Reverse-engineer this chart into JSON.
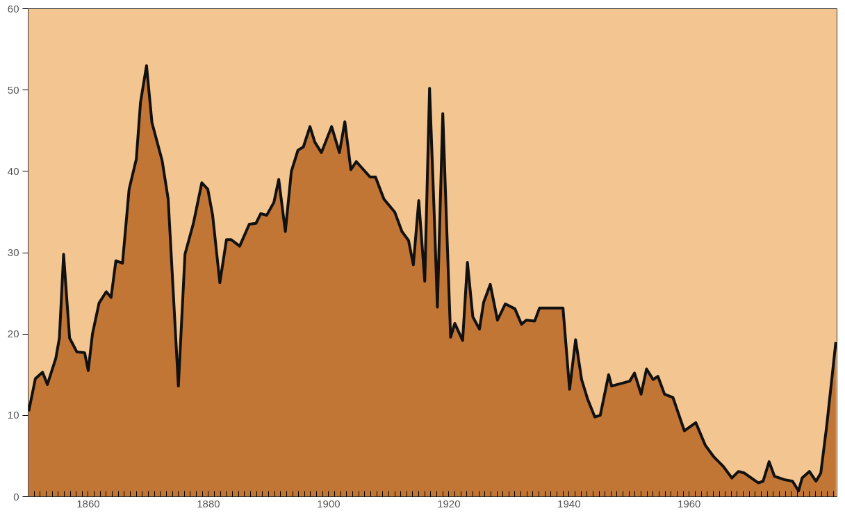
{
  "chart_data": {
    "type": "area",
    "x": [
      1850.1,
      1851.2,
      1852.4,
      1853.2,
      1854.6,
      1855.2,
      1855.9,
      1856.9,
      1858.1,
      1859.4,
      1860.0,
      1860.7,
      1861.8,
      1863.0,
      1863.8,
      1864.6,
      1865.7,
      1866.8,
      1868.0,
      1868.7,
      1869.7,
      1870.6,
      1872.3,
      1873.3,
      1875.0,
      1876.1,
      1877.5,
      1878.9,
      1879.9,
      1880.7,
      1881.9,
      1883.0,
      1883.8,
      1885.2,
      1886.8,
      1887.9,
      1888.7,
      1889.7,
      1890.9,
      1891.7,
      1892.8,
      1893.8,
      1894.9,
      1895.8,
      1896.9,
      1897.7,
      1898.8,
      1900.5,
      1901.8,
      1902.7,
      1903.7,
      1904.6,
      1906.9,
      1907.8,
      1909.2,
      1911.0,
      1912.2,
      1913.3,
      1914.1,
      1915.0,
      1916.0,
      1916.8,
      1917.6,
      1918.1,
      1919.0,
      1919.6,
      1920.3,
      1921.0,
      1922.3,
      1923.1,
      1924.0,
      1925.1,
      1925.8,
      1926.9,
      1928.1,
      1929.4,
      1931.0,
      1932.1,
      1932.9,
      1934.3,
      1935.1,
      1939.0,
      1940.1,
      1941.1,
      1942.1,
      1943.1,
      1944.3,
      1945.2,
      1946.6,
      1947.1,
      1950.1,
      1950.9,
      1952.0,
      1952.9,
      1954.0,
      1954.8,
      1955.9,
      1957.3,
      1959.2,
      1961.1,
      1962.7,
      1964.1,
      1965.7,
      1967.1,
      1968.2,
      1969.2,
      1971.5,
      1972.3,
      1973.3,
      1974.2,
      1975.8,
      1977.2,
      1978.2,
      1978.8,
      1980.0,
      1981.1,
      1981.9,
      1982.9,
      1984.4
    ],
    "series": [
      {
        "color": "#c27636",
        "values": [
          10.5,
          14.5,
          15.3,
          13.8,
          17,
          19.5,
          29.8,
          19.5,
          17.8,
          17.7,
          15.5,
          20,
          23.8,
          25.2,
          24.5,
          29,
          28.7,
          37.8,
          41.5,
          48.5,
          53,
          46,
          41.3,
          36.6,
          13.6,
          29.8,
          33.6,
          38.6,
          37.8,
          34.6,
          26.3,
          31.6,
          31.6,
          30.8,
          33.5,
          33.6,
          34.8,
          34.6,
          36.2,
          39,
          32.6,
          40,
          42.6,
          43,
          45.5,
          43.6,
          42.3,
          45.5,
          42.3,
          46.1,
          40.2,
          41.2,
          39.3,
          39.3,
          36.6,
          35,
          32.6,
          31.5,
          28.5,
          36.4,
          26.5,
          50.2,
          34.2,
          23.3,
          47.1,
          34.2,
          19.6,
          21.3,
          19.2,
          28.8,
          22.1,
          20.6,
          23.9,
          26.1,
          21.7,
          23.7,
          23.1,
          21.2,
          21.7,
          21.6,
          23.2,
          23.2,
          13.2,
          19.3,
          14.4,
          12,
          9.8,
          10,
          15,
          13.6,
          14.2,
          15.2,
          12.6,
          15.7,
          14.4,
          14.8,
          12.6,
          12.2,
          8.1,
          9.1,
          6.3,
          4.9,
          3.7,
          2.3,
          3.1,
          2.9,
          1.7,
          1.9,
          4.3,
          2.5,
          2.1,
          1.9,
          0.7,
          2.3,
          3.1,
          1.9,
          2.9,
          8.8,
          19
        ]
      }
    ],
    "xlim": [
      1850,
      1984.6
    ],
    "ylim": [
      0,
      60
    ],
    "yticks": [
      0,
      10,
      20,
      30,
      40,
      50,
      60
    ],
    "xticks": [
      {
        "value": 1851,
        "label": null
      },
      {
        "value": 1852,
        "label": null
      },
      {
        "value": 1853,
        "label": null
      },
      {
        "value": 1854,
        "label": null
      },
      {
        "value": 1855,
        "label": null
      },
      {
        "value": 1856,
        "label": null
      },
      {
        "value": 1857,
        "label": null
      },
      {
        "value": 1858,
        "label": null
      },
      {
        "value": 1859,
        "label": null
      },
      1860,
      {
        "value": 1861,
        "label": null
      },
      {
        "value": 1862,
        "label": null
      },
      {
        "value": 1863,
        "label": null
      },
      {
        "value": 1864,
        "label": null
      },
      {
        "value": 1865,
        "label": null
      },
      {
        "value": 1866,
        "label": null
      },
      {
        "value": 1867,
        "label": null
      },
      {
        "value": 1868,
        "label": null
      },
      {
        "value": 1869,
        "label": null
      },
      {
        "value": 1870,
        "label": null
      },
      {
        "value": 1871,
        "label": null
      },
      {
        "value": 1872,
        "label": null
      },
      {
        "value": 1873,
        "label": null
      },
      {
        "value": 1874,
        "label": null
      },
      {
        "value": 1875,
        "label": null
      },
      {
        "value": 1876,
        "label": null
      },
      {
        "value": 1877,
        "label": null
      },
      {
        "value": 1878,
        "label": null
      },
      {
        "value": 1879,
        "label": null
      },
      1880,
      {
        "value": 1881,
        "label": null
      },
      {
        "value": 1882,
        "label": null
      },
      {
        "value": 1883,
        "label": null
      },
      {
        "value": 1884,
        "label": null
      },
      {
        "value": 1885,
        "label": null
      },
      {
        "value": 1886,
        "label": null
      },
      {
        "value": 1887,
        "label": null
      },
      {
        "value": 1888,
        "label": null
      },
      {
        "value": 1889,
        "label": null
      },
      {
        "value": 1890,
        "label": null
      },
      {
        "value": 1891,
        "label": null
      },
      {
        "value": 1892,
        "label": null
      },
      {
        "value": 1893,
        "label": null
      },
      {
        "value": 1894,
        "label": null
      },
      {
        "value": 1895,
        "label": null
      },
      {
        "value": 1896,
        "label": null
      },
      {
        "value": 1897,
        "label": null
      },
      {
        "value": 1898,
        "label": null
      },
      {
        "value": 1899,
        "label": null
      },
      1900,
      {
        "value": 1901,
        "label": null
      },
      {
        "value": 1902,
        "label": null
      },
      {
        "value": 1903,
        "label": null
      },
      {
        "value": 1904,
        "label": null
      },
      {
        "value": 1905,
        "label": null
      },
      {
        "value": 1906,
        "label": null
      },
      {
        "value": 1907,
        "label": null
      },
      {
        "value": 1908,
        "label": null
      },
      {
        "value": 1909,
        "label": null
      },
      {
        "value": 1910,
        "label": null
      },
      {
        "value": 1911,
        "label": null
      },
      {
        "value": 1912,
        "label": null
      },
      {
        "value": 1913,
        "label": null
      },
      {
        "value": 1914,
        "label": null
      },
      {
        "value": 1915,
        "label": null
      },
      {
        "value": 1916,
        "label": null
      },
      {
        "value": 1917,
        "label": null
      },
      {
        "value": 1918,
        "label": null
      },
      {
        "value": 1919,
        "label": null
      },
      1920,
      {
        "value": 1921,
        "label": null
      },
      {
        "value": 1922,
        "label": null
      },
      {
        "value": 1923,
        "label": null
      },
      {
        "value": 1924,
        "label": null
      },
      {
        "value": 1925,
        "label": null
      },
      {
        "value": 1926,
        "label": null
      },
      {
        "value": 1927,
        "label": null
      },
      {
        "value": 1928,
        "label": null
      },
      {
        "value": 1929,
        "label": null
      },
      {
        "value": 1930,
        "label": null
      },
      {
        "value": 1931,
        "label": null
      },
      {
        "value": 1932,
        "label": null
      },
      {
        "value": 1933,
        "label": null
      },
      {
        "value": 1934,
        "label": null
      },
      {
        "value": 1935,
        "label": null
      },
      {
        "value": 1936,
        "label": null
      },
      {
        "value": 1937,
        "label": null
      },
      {
        "value": 1938,
        "label": null
      },
      {
        "value": 1939,
        "label": null
      },
      1940,
      {
        "value": 1941,
        "label": null
      },
      {
        "value": 1942,
        "label": null
      },
      {
        "value": 1943,
        "label": null
      },
      {
        "value": 1944,
        "label": null
      },
      {
        "value": 1945,
        "label": null
      },
      {
        "value": 1946,
        "label": null
      },
      {
        "value": 1947,
        "label": null
      },
      {
        "value": 1948,
        "label": null
      },
      {
        "value": 1949,
        "label": null
      },
      {
        "value": 1950,
        "label": null
      },
      {
        "value": 1951,
        "label": null
      },
      {
        "value": 1952,
        "label": null
      },
      {
        "value": 1953,
        "label": null
      },
      {
        "value": 1954,
        "label": null
      },
      {
        "value": 1955,
        "label": null
      },
      {
        "value": 1956,
        "label": null
      },
      {
        "value": 1957,
        "label": null
      },
      {
        "value": 1958,
        "label": null
      },
      {
        "value": 1959,
        "label": null
      },
      1960,
      {
        "value": 1961,
        "label": null
      },
      {
        "value": 1962,
        "label": null
      },
      {
        "value": 1963,
        "label": null
      },
      {
        "value": 1964,
        "label": null
      },
      {
        "value": 1965,
        "label": null
      },
      {
        "value": 1966,
        "label": null
      },
      {
        "value": 1967,
        "label": null
      },
      {
        "value": 1968,
        "label": null
      },
      {
        "value": 1969,
        "label": null
      },
      {
        "value": 1970,
        "label": null
      },
      {
        "value": 1971,
        "label": null
      },
      {
        "value": 1972,
        "label": null
      },
      {
        "value": 1973,
        "label": null
      },
      {
        "value": 1974,
        "label": null
      },
      {
        "value": 1975,
        "label": null
      },
      {
        "value": 1976,
        "label": null
      },
      {
        "value": 1977,
        "label": null
      },
      {
        "value": 1978,
        "label": null
      },
      {
        "value": 1979,
        "label": null
      },
      {
        "value": 1980,
        "label": null
      },
      {
        "value": 1981,
        "label": null
      },
      {
        "value": 1982,
        "label": null
      },
      {
        "value": 1983,
        "label": null
      },
      {
        "value": 1984,
        "label": null
      }
    ],
    "grid": false
  }
}
